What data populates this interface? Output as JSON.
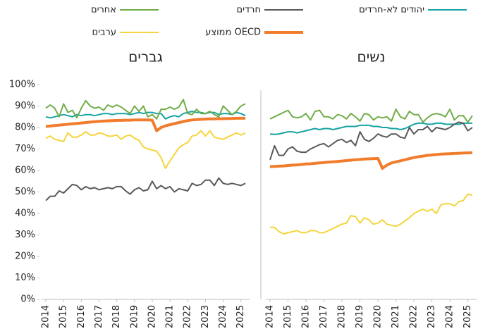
{
  "chart_data": [
    {
      "type": "line",
      "title": "גברים",
      "categories": [
        "2014",
        null,
        null,
        null,
        "2015",
        null,
        null,
        null,
        "2016",
        null,
        null,
        null,
        "2017",
        null,
        null,
        null,
        "2018",
        null,
        null,
        null,
        "2019",
        null,
        null,
        null,
        "2020",
        null,
        null,
        null,
        "2021",
        null,
        null,
        null,
        "2022",
        null,
        null,
        null,
        "2023",
        null,
        null,
        null,
        "2024",
        null,
        null,
        null,
        "2025",
        null
      ],
      "ylim": [
        0,
        100
      ],
      "yticks": [
        {
          "value": 0,
          "label": "0%"
        },
        {
          "value": 10,
          "label": "10%"
        },
        {
          "value": 20,
          "label": "20%"
        },
        {
          "value": 30,
          "label": "30%"
        },
        {
          "value": 40,
          "label": "40%"
        },
        {
          "value": 50,
          "label": "50%"
        },
        {
          "value": 60,
          "label": "60%"
        },
        {
          "value": 70,
          "label": "70%"
        },
        {
          "value": 80,
          "label": "80%"
        },
        {
          "value": 90,
          "label": "90%"
        },
        {
          "value": 100,
          "label": "100%"
        }
      ],
      "series": [
        {
          "name": "יהודים לא-חרדים",
          "color": "#17a3a3",
          "values": [
            85,
            84.5,
            85,
            85.5,
            86,
            85.5,
            85,
            86,
            85.5,
            86,
            86,
            85.5,
            86,
            86.5,
            86.5,
            86,
            86.5,
            86.5,
            86.5,
            86,
            86.5,
            87,
            86.5,
            87,
            87,
            86.5,
            86.5,
            84,
            85,
            85.5,
            85,
            86.5,
            87,
            87.5,
            87,
            87,
            86.5,
            87,
            87,
            86,
            86.5,
            86.5,
            86,
            87,
            86.5,
            85.5
          ]
        },
        {
          "name": "חרדים",
          "color": "#595959",
          "values": [
            46,
            48,
            48,
            50.5,
            49.5,
            51.5,
            53.5,
            53,
            51,
            52.5,
            51.5,
            52,
            51,
            51.5,
            52,
            51.5,
            52.5,
            52.5,
            50.5,
            49,
            51,
            52,
            50.5,
            51,
            55,
            51.5,
            53,
            51.5,
            52.5,
            50,
            51.5,
            51,
            50.5,
            54,
            53,
            53.5,
            55.5,
            55.5,
            53,
            56.5,
            54,
            53.5,
            54,
            53.5,
            53,
            54
          ]
        },
        {
          "name": "אחרים",
          "color": "#70ad47",
          "values": [
            89,
            90.5,
            89,
            85,
            91,
            87,
            88,
            84.5,
            89,
            92.5,
            90,
            89,
            89.5,
            88,
            90.5,
            89.5,
            90.5,
            89.5,
            88,
            86.5,
            90,
            87.5,
            90,
            85,
            86,
            84,
            88.5,
            88.5,
            89.5,
            88.5,
            89.5,
            93,
            86.5,
            86,
            88.5,
            86.5,
            86.5,
            87.5,
            86,
            85,
            90,
            88,
            86,
            87.5,
            90,
            91
          ]
        },
        {
          "name": "ממוצע OECD",
          "color": "#f07c2c",
          "values": [
            80.5,
            80.7,
            80.9,
            81.1,
            81.3,
            81.5,
            81.7,
            81.9,
            82.1,
            82.3,
            82.5,
            82.7,
            82.9,
            83,
            83.1,
            83.2,
            83.3,
            83.3,
            83.4,
            83.4,
            83.5,
            83.5,
            83.5,
            83.5,
            83.4,
            78.5,
            80,
            80.8,
            81.3,
            81.8,
            82.3,
            82.8,
            83.2,
            83.5,
            83.7,
            83.8,
            83.9,
            84,
            84,
            84.1,
            84.1,
            84.2,
            84.2,
            84.3,
            84.3,
            84.3
          ]
        },
        {
          "name": "ערבים",
          "color": "#f5d43c",
          "values": [
            75,
            76,
            74.5,
            74,
            73.5,
            77.5,
            75.5,
            75.5,
            76.5,
            78,
            76.5,
            76.5,
            77.5,
            77,
            76,
            76,
            76.5,
            74.5,
            76,
            76.5,
            75,
            74,
            71,
            70,
            69.5,
            69,
            66,
            61,
            64.5,
            67.5,
            70.5,
            72,
            73,
            76,
            76.5,
            78.5,
            76,
            78.5,
            75.5,
            75,
            74.5,
            75.5,
            76.5,
            77.5,
            76.5,
            77.5
          ]
        }
      ]
    },
    {
      "type": "line",
      "title": "נשים",
      "categories": [
        "2014",
        null,
        null,
        null,
        "2015",
        null,
        null,
        null,
        "2016",
        null,
        null,
        null,
        "2017",
        null,
        null,
        null,
        "2018",
        null,
        null,
        null,
        "2019",
        null,
        null,
        null,
        "2020",
        null,
        null,
        null,
        "2021",
        null,
        null,
        null,
        "2022",
        null,
        null,
        null,
        "2023",
        null,
        null,
        null,
        "2024",
        null,
        null,
        null,
        "2025",
        null
      ],
      "ylim": [
        0,
        100
      ],
      "series": [
        {
          "color": "#17a3a3",
          "values": [
            77,
            76.8,
            77,
            77.5,
            78,
            78,
            77.5,
            78,
            78.5,
            79,
            79.5,
            79,
            79.5,
            79.5,
            79,
            79.5,
            80,
            80.5,
            80.5,
            80.5,
            81,
            81,
            81,
            80.5,
            80.5,
            80,
            80,
            79.5,
            79.5,
            79,
            79.5,
            80.5,
            81.5,
            82,
            82,
            81.5,
            81.5,
            82,
            82,
            81.5,
            81.5,
            81.5,
            81.5,
            82,
            82,
            82
          ]
        },
        {
          "color": "#595959",
          "values": [
            65,
            71.5,
            67,
            67,
            70,
            71,
            69,
            68.5,
            68.5,
            70,
            71,
            72,
            72.5,
            71,
            72.5,
            74,
            74.5,
            73,
            74,
            71.5,
            78,
            74.5,
            73.5,
            75,
            77,
            76,
            75.5,
            77,
            77,
            75.5,
            75,
            80,
            77,
            79,
            79,
            80.5,
            78,
            80,
            79.5,
            79,
            80,
            81.5,
            82.5,
            82,
            78.5,
            80
          ]
        },
        {
          "color": "#70ad47",
          "values": [
            84,
            85,
            86,
            87,
            88,
            85,
            84.5,
            85,
            86.5,
            83.5,
            87.5,
            88,
            85,
            85,
            84,
            86,
            85.5,
            84,
            86.5,
            85,
            83,
            86.5,
            86,
            83.5,
            85,
            84.5,
            85,
            83,
            88.5,
            85,
            84,
            87.5,
            86,
            86,
            82.5,
            84.5,
            86,
            86.5,
            86,
            85,
            88.5,
            83.5,
            85.5,
            85.5,
            82.5,
            85.5
          ]
        },
        {
          "color": "#f07c2c",
          "values": [
            61.8,
            61.9,
            62,
            62.1,
            62.3,
            62.5,
            62.6,
            62.8,
            63,
            63.1,
            63.3,
            63.5,
            63.7,
            63.9,
            64,
            64.2,
            64.4,
            64.6,
            64.8,
            65,
            65.1,
            65.3,
            65.4,
            65.5,
            65.6,
            61,
            62.5,
            63.5,
            64,
            64.5,
            65,
            65.5,
            66,
            66.4,
            66.7,
            67,
            67.2,
            67.4,
            67.6,
            67.7,
            67.8,
            67.9,
            68,
            68.1,
            68.2,
            68.3
          ]
        },
        {
          "color": "#f5d43c",
          "values": [
            33.5,
            33.5,
            31.5,
            30.5,
            31,
            31.5,
            32,
            31,
            31,
            32,
            32,
            31,
            31,
            32,
            33,
            34,
            35,
            35.5,
            39,
            38.5,
            35.5,
            38,
            37,
            35,
            35.5,
            37,
            35,
            34.5,
            34,
            35,
            36.5,
            38,
            40,
            41,
            42,
            41,
            42,
            40,
            44,
            44.5,
            44.5,
            43.5,
            45.5,
            46,
            49,
            48.5
          ]
        }
      ]
    }
  ]
}
